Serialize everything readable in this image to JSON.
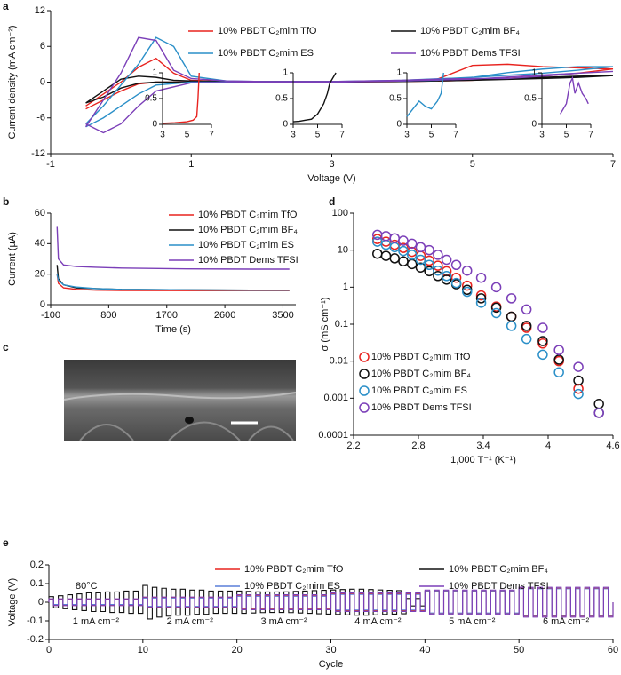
{
  "chart_data": [
    {
      "panel": "a",
      "type": "line",
      "x_label": "Voltage (V)",
      "y_label": "Current density (mA cm⁻²)",
      "x": [
        -0.5,
        -0.25,
        0,
        0.25,
        0.5,
        0.75,
        1,
        1.5,
        2,
        3,
        4,
        4.5,
        5,
        5.5,
        6,
        6.5,
        7,
        6.5,
        6,
        5,
        4,
        3,
        2,
        1,
        0.5,
        0.25,
        0,
        -0.25,
        -0.5
      ],
      "series": [
        {
          "name": "10% PBDT C₂mim TfO",
          "color": "#e8231f",
          "values": [
            -4,
            -2,
            0,
            2.5,
            4,
            1.5,
            0.3,
            0.1,
            0.1,
            0.1,
            0.2,
            0.5,
            2.8,
            3,
            2.6,
            2.4,
            2.2,
            1.5,
            1,
            0.3,
            0.1,
            0,
            0,
            0,
            0,
            -0.3,
            -1.5,
            -3,
            -4.5
          ]
        },
        {
          "name": "10% PBDT C₂mim BF₄",
          "color": "#111111",
          "values": [
            -3.5,
            -1.5,
            0.5,
            1,
            0.8,
            0.3,
            0.2,
            0.1,
            0.1,
            0.1,
            0.1,
            0.2,
            0.4,
            0.6,
            0.8,
            1,
            1.1,
            0.8,
            0.6,
            0.3,
            0.1,
            0,
            0,
            0,
            0,
            -0.2,
            -1,
            -2.5,
            -3.5
          ]
        },
        {
          "name": "10% PBDT C₂mim ES",
          "color": "#2a8fc8",
          "values": [
            -7,
            -4,
            -0.5,
            3,
            7.5,
            6,
            1,
            0.2,
            0.1,
            0.1,
            0.2,
            0.3,
            0.8,
            1.6,
            2.2,
            2.6,
            2.6,
            2,
            1.5,
            0.8,
            0.3,
            0.1,
            0,
            0,
            -0.5,
            -2,
            -4,
            -6,
            -7.5
          ]
        },
        {
          "name": "10% PBDT Dems TFSI",
          "color": "#7b3fb8",
          "values": [
            -7.5,
            -3,
            1.5,
            7.5,
            7,
            2,
            0.6,
            0.2,
            0.1,
            0.1,
            0.3,
            0.5,
            0.6,
            0.6,
            1,
            1.5,
            1.8,
            1.5,
            1.2,
            0.5,
            0.2,
            0,
            0,
            -0.1,
            -1.5,
            -4,
            -7,
            -8.5,
            -7
          ]
        }
      ],
      "xlim": [
        -1,
        7
      ],
      "xticks": [
        -1,
        1,
        3,
        5,
        7
      ],
      "ylim": [
        -12,
        12
      ],
      "yticks": [
        -12,
        -6,
        0,
        6,
        12
      ]
    },
    {
      "type": "line",
      "x": [
        3,
        4,
        5,
        5.5,
        5.8,
        5.9,
        6
      ],
      "values": [
        0.02,
        0.03,
        0.05,
        0.08,
        0.15,
        0.5,
        1
      ],
      "color": "#e8231f",
      "xlim": [
        3,
        7
      ],
      "xticks": [
        3,
        5,
        7
      ],
      "ylim": [
        0,
        1
      ],
      "yticks": [
        0,
        0.5,
        1
      ]
    },
    {
      "type": "line",
      "x": [
        3,
        3.5,
        4,
        4.5,
        5,
        5.5,
        5.8,
        6,
        6.5
      ],
      "values": [
        0.05,
        0.06,
        0.08,
        0.1,
        0.2,
        0.4,
        0.6,
        0.8,
        1
      ],
      "color": "#111111",
      "xlim": [
        3,
        7
      ],
      "xticks": [
        3,
        5,
        7
      ],
      "ylim": [
        0,
        1
      ],
      "yticks": [
        0,
        0.5,
        1
      ]
    },
    {
      "type": "line",
      "x": [
        3,
        3.5,
        4,
        4.5,
        5,
        5.5,
        5.8,
        6
      ],
      "values": [
        0.15,
        0.3,
        0.45,
        0.35,
        0.3,
        0.45,
        0.6,
        1
      ],
      "color": "#2a8fc8",
      "xlim": [
        3,
        7
      ],
      "xticks": [
        3,
        5,
        7
      ],
      "ylim": [
        0,
        1
      ],
      "yticks": [
        0,
        0.5,
        1
      ]
    },
    {
      "type": "line",
      "x": [
        4.5,
        5,
        5.3,
        5.5,
        5.7,
        6,
        6.3,
        6.6,
        6.8
      ],
      "values": [
        0.2,
        0.4,
        0.8,
        0.9,
        0.6,
        0.8,
        0.6,
        0.5,
        0.4
      ],
      "color": "#7b3fb8",
      "xlim": [
        3,
        7
      ],
      "xticks": [
        3,
        5,
        7
      ],
      "ylim": [
        0,
        1
      ],
      "yticks": [
        0,
        0.5,
        1
      ]
    },
    {
      "panel": "b",
      "type": "line",
      "x_label": "Time (s)",
      "y_label": "Current (μA)",
      "x": [
        0,
        20,
        100,
        300,
        600,
        1000,
        2000,
        3000,
        3600
      ],
      "series": [
        {
          "name": "10% PBDT C₂mim TfO",
          "color": "#e8231f",
          "values": [
            20,
            14,
            11,
            10,
            9.5,
            9.3,
            9.2,
            9.2,
            9.2
          ]
        },
        {
          "name": "10% PBDT C₂mim BF₄",
          "color": "#111111",
          "values": [
            26,
            17,
            13,
            11,
            10.5,
            10,
            9.7,
            9.5,
            9.5
          ]
        },
        {
          "name": "10% PBDT C₂mim ES",
          "color": "#2a8fc8",
          "values": [
            20,
            16,
            13,
            11.5,
            10.5,
            10,
            9.7,
            9.5,
            9.5
          ]
        },
        {
          "name": "10% PBDT Dems TFSI",
          "color": "#7b3fb8",
          "values": [
            51,
            30,
            26,
            25,
            24.5,
            24,
            23.5,
            23.3,
            23.3
          ]
        }
      ],
      "xlim": [
        -100,
        3700
      ],
      "xticks": [
        -100,
        800,
        1700,
        2600,
        3500
      ],
      "ylim": [
        0,
        60
      ],
      "yticks": [
        0,
        20,
        40,
        60
      ]
    },
    {
      "panel": "c",
      "type": "image"
    },
    {
      "panel": "d",
      "type": "scatter",
      "x_label": "1,000 T⁻¹ (K⁻¹)",
      "y_label": "σ (mS cm⁻¹)",
      "x": [
        2.42,
        2.5,
        2.58,
        2.66,
        2.74,
        2.82,
        2.9,
        2.98,
        3.06,
        3.15,
        3.25,
        3.38,
        3.52,
        3.66,
        3.8,
        3.95,
        4.1,
        4.28,
        4.47
      ],
      "series": [
        {
          "name": "10% PBDT C₂mim TfO",
          "color": "#e8231f",
          "values": [
            20,
            17,
            14,
            11.5,
            9,
            7,
            5.2,
            3.8,
            2.7,
            1.8,
            1.1,
            0.6,
            0.3,
            0.16,
            0.08,
            0.03,
            0.01,
            0.0018,
            0.0004
          ]
        },
        {
          "name": "10% PBDT C₂mim BF₄",
          "color": "#111111",
          "values": [
            8,
            7,
            6,
            5,
            4.2,
            3.4,
            2.7,
            2,
            1.6,
            1.2,
            0.85,
            0.5,
            0.28,
            0.16,
            0.09,
            0.035,
            0.011,
            0.003,
            0.0007
          ]
        },
        {
          "name": "10% PBDT C₂mim ES",
          "color": "#2a8fc8",
          "values": [
            17,
            14,
            12,
            9.5,
            7.5,
            5.5,
            4,
            2.8,
            2,
            1.3,
            0.75,
            0.38,
            0.2,
            0.09,
            0.04,
            0.015,
            0.005,
            0.0013,
            0.0004
          ]
        },
        {
          "name": "10% PBDT Dems TFSI",
          "color": "#7b3fb8",
          "values": [
            26,
            24,
            21,
            18,
            15,
            12,
            10,
            7.5,
            5.5,
            4,
            2.8,
            1.8,
            1,
            0.5,
            0.25,
            0.08,
            0.02,
            0.007,
            0.0004
          ]
        }
      ],
      "xlim": [
        2.2,
        4.6
      ],
      "xticks": [
        2.2,
        2.8,
        3.4,
        4,
        4.6
      ],
      "ylim": [
        0.0001,
        100
      ],
      "yticks": [
        0.0001,
        0.001,
        0.01,
        0.1,
        1,
        10,
        100
      ],
      "y_scale": "log",
      "legend": "lower-left"
    },
    {
      "panel": "e",
      "type": "cycling",
      "x_label": "Cycle",
      "y_label": "Voltage (V)",
      "annotation": "80°C",
      "current_labels": [
        "1 mA cm⁻²",
        "2 mA cm⁻²",
        "3 mA cm⁻²",
        "4 mA cm⁻²",
        "5 mA cm⁻²",
        "6 mA cm⁻²"
      ],
      "x": [
        0,
        1,
        2,
        3,
        4,
        5,
        6,
        7,
        8,
        9,
        10,
        11,
        12,
        13,
        14,
        15,
        16,
        17,
        18,
        19,
        20,
        21,
        22,
        23,
        24,
        25,
        26,
        27,
        28,
        29,
        30,
        31,
        32,
        33,
        34,
        35,
        36,
        37,
        38,
        39,
        40,
        41,
        42,
        43,
        44,
        45,
        46,
        47,
        48,
        49,
        50,
        51,
        52,
        53,
        54,
        55,
        56,
        57,
        58,
        59
      ],
      "series": [
        {
          "name": "10% PBDT C₂mim TfO",
          "color": "#e8231f",
          "values": [
            0.015,
            0.015,
            0.015,
            0.015,
            0.015,
            0.015,
            0.015,
            0.015,
            0.015,
            0.015,
            0.025,
            0.025,
            0.025,
            0.025,
            0.025,
            0.025,
            0.025,
            0.025,
            0.025,
            0.025,
            0.035,
            0.035,
            0.035,
            0.035,
            0.035,
            0.035,
            0.035,
            0.035,
            0.035,
            0.035,
            0.045,
            0.045,
            0.045,
            0.045,
            0.045,
            0.045,
            0.045,
            0.045,
            0.045,
            0.045,
            0.06,
            0.06,
            0.06,
            0.06,
            0.06,
            0.06,
            0.06,
            0.06,
            0.06,
            0.06,
            0.075,
            0.075,
            0.075,
            0.075,
            0.075,
            0.075,
            0.075,
            0.075,
            0.075,
            0.075
          ]
        },
        {
          "name": "10% PBDT C₂mim BF₄",
          "color": "#111111",
          "values": [
            0.03,
            0.035,
            0.04,
            0.045,
            0.05,
            0.05,
            0.055,
            0.055,
            0.06,
            0.06,
            0.09,
            0.08,
            0.075,
            0.07,
            0.07,
            0.065,
            0.065,
            0.06,
            0.06,
            0.06,
            0.06,
            0.058,
            0.056,
            0.055,
            0.055,
            0.056,
            0.058,
            0.06,
            0.062,
            0.064,
            0.066,
            0.068,
            0.07,
            0.07,
            0.068,
            0.066,
            0.064,
            0.062,
            0.02,
            0.02,
            null,
            null,
            null,
            null,
            null,
            null,
            null,
            null,
            null,
            null,
            null,
            null,
            null,
            null,
            null,
            null,
            null,
            null,
            null,
            null
          ]
        },
        {
          "name": "10% PBDT C₂mim ES",
          "color": "#5a7fd8",
          "values": [
            0.012,
            0.012,
            0.012,
            0.012,
            0.012,
            0.012,
            0.012,
            0.012,
            0.012,
            0.012,
            0.022,
            0.022,
            0.022,
            0.022,
            0.022,
            0.022,
            0.022,
            0.022,
            0.022,
            0.022,
            0.032,
            0.032,
            0.032,
            0.032,
            0.032,
            0.032,
            0.032,
            0.032,
            0.032,
            0.032,
            0.042,
            0.042,
            0.042,
            0.042,
            0.042,
            0.042,
            0.042,
            0.042,
            0.042,
            0.042,
            0.058,
            0.058,
            0.058,
            0.058,
            0.058,
            0.058,
            0.058,
            0.058,
            0.058,
            0.058,
            0.072,
            0.072,
            0.072,
            0.072,
            0.072,
            0.072,
            0.072,
            0.072,
            0.072,
            0.072
          ]
        },
        {
          "name": "10% PBDT Dems TFSI",
          "color": "#7b3fb8",
          "values": [
            0.018,
            0.018,
            0.018,
            0.018,
            0.018,
            0.018,
            0.018,
            0.018,
            0.018,
            0.018,
            0.028,
            0.028,
            0.028,
            0.028,
            0.028,
            0.028,
            0.028,
            0.028,
            0.028,
            0.028,
            0.04,
            0.04,
            0.04,
            0.04,
            0.04,
            0.04,
            0.04,
            0.04,
            0.04,
            0.04,
            0.05,
            0.05,
            0.05,
            0.05,
            0.05,
            0.05,
            0.05,
            0.05,
            0.05,
            0.05,
            0.065,
            0.065,
            0.065,
            0.065,
            0.065,
            0.065,
            0.065,
            0.065,
            0.065,
            0.065,
            0.08,
            0.08,
            0.08,
            0.08,
            0.08,
            0.08,
            0.08,
            0.08,
            0.08,
            0.08
          ]
        }
      ],
      "xlim": [
        0,
        60
      ],
      "xticks": [
        0,
        10,
        20,
        30,
        40,
        50,
        60
      ],
      "ylim": [
        -0.2,
        0.2
      ],
      "yticks": [
        -0.2,
        -0.1,
        0,
        0.1,
        0.2
      ]
    }
  ]
}
